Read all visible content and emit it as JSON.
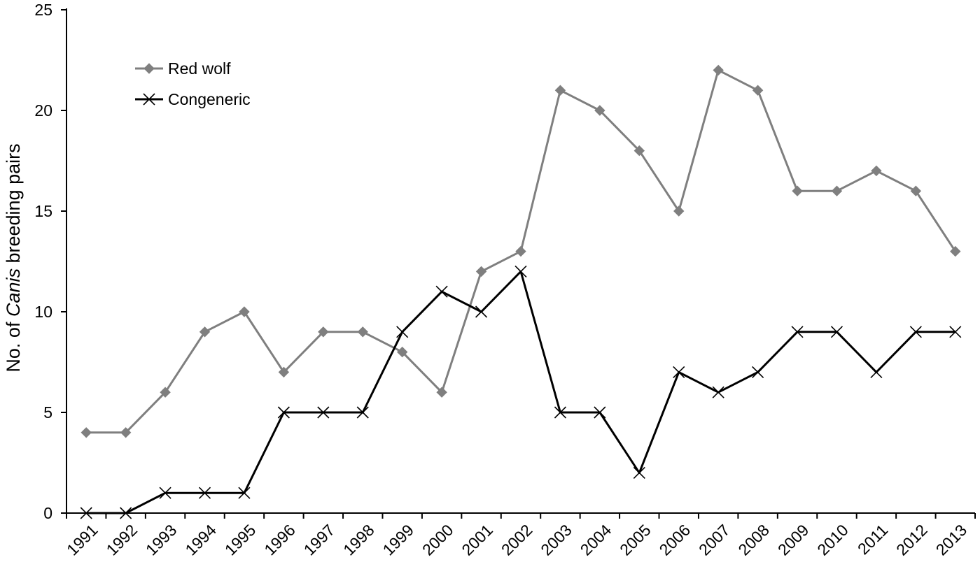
{
  "chart_data": {
    "type": "line",
    "title": "",
    "xlabel": "",
    "ylabel": {
      "prefix": "No. of ",
      "italic": "Canis",
      "suffix": " breeding pairs"
    },
    "categories": [
      "1991",
      "1992",
      "1993",
      "1994",
      "1995",
      "1996",
      "1997",
      "1998",
      "1999",
      "2000",
      "2001",
      "2002",
      "2003",
      "2004",
      "2005",
      "2006",
      "2007",
      "2008",
      "2009",
      "2010",
      "2011",
      "2012",
      "2013"
    ],
    "ylim": [
      0,
      25
    ],
    "yticks": [
      0,
      5,
      10,
      15,
      20,
      25
    ],
    "grid": false,
    "legend_position": "top-left",
    "series": [
      {
        "name": "Red wolf",
        "color": "#7f7f7f",
        "marker": "diamond",
        "values": [
          4,
          4,
          6,
          9,
          10,
          7,
          9,
          9,
          8,
          6,
          12,
          13,
          21,
          20,
          18,
          15,
          22,
          21,
          16,
          16,
          17,
          16,
          13
        ]
      },
      {
        "name": "Congeneric",
        "color": "#000000",
        "marker": "x",
        "values": [
          0,
          0,
          1,
          1,
          1,
          5,
          5,
          5,
          9,
          11,
          10,
          12,
          5,
          5,
          2,
          7,
          6,
          7,
          9,
          9,
          7,
          9,
          9
        ]
      }
    ]
  }
}
